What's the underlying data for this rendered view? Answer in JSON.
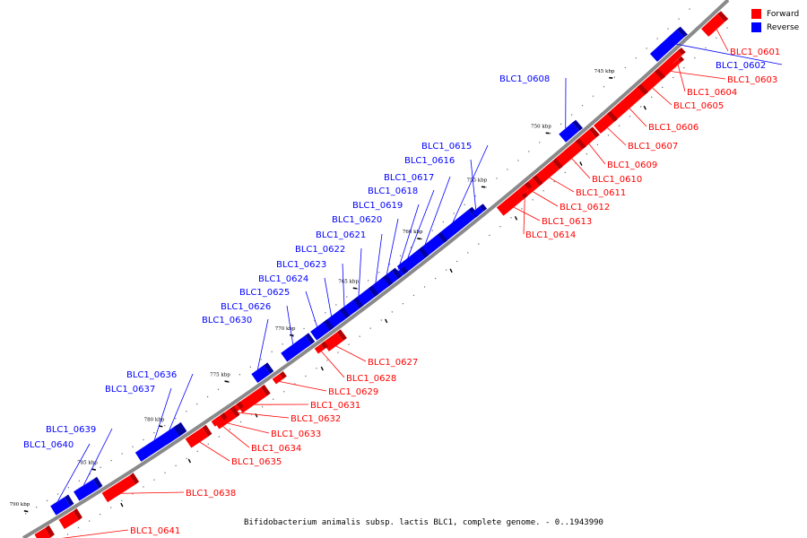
{
  "legend": {
    "forward_label": "Forward",
    "reverse_label": "Reverse",
    "forward_color": "#ff0000",
    "reverse_color": "#0000ff"
  },
  "caption": "Bifidobacterium animalis subsp. lactis BLC1, complete genome. - 0..1943990",
  "ticks": [
    {
      "label": "745 kbp"
    },
    {
      "label": "750 kbp"
    },
    {
      "label": "755 kbp"
    },
    {
      "label": "760 kbp"
    },
    {
      "label": "765 kbp"
    },
    {
      "label": "770 kbp"
    },
    {
      "label": "775 kbp"
    },
    {
      "label": "780 kbp"
    },
    {
      "label": "785 kbp"
    },
    {
      "label": "790 kbp"
    }
  ],
  "genes": [
    {
      "label": "BLC1_0601",
      "strand": "forward"
    },
    {
      "label": "BLC1_0602",
      "strand": "reverse"
    },
    {
      "label": "BLC1_0603",
      "strand": "forward"
    },
    {
      "label": "BLC1_0604",
      "strand": "forward"
    },
    {
      "label": "BLC1_0605",
      "strand": "forward"
    },
    {
      "label": "BLC1_0606",
      "strand": "forward"
    },
    {
      "label": "BLC1_0607",
      "strand": "forward"
    },
    {
      "label": "BLC1_0608",
      "strand": "reverse"
    },
    {
      "label": "BLC1_0609",
      "strand": "forward"
    },
    {
      "label": "BLC1_0610",
      "strand": "forward"
    },
    {
      "label": "BLC1_0611",
      "strand": "forward"
    },
    {
      "label": "BLC1_0612",
      "strand": "forward"
    },
    {
      "label": "BLC1_0613",
      "strand": "forward"
    },
    {
      "label": "BLC1_0614",
      "strand": "forward"
    },
    {
      "label": "BLC1_0615",
      "strand": "reverse"
    },
    {
      "label": "BLC1_0616",
      "strand": "reverse"
    },
    {
      "label": "BLC1_0617",
      "strand": "reverse"
    },
    {
      "label": "BLC1_0618",
      "strand": "reverse"
    },
    {
      "label": "BLC1_0619",
      "strand": "reverse"
    },
    {
      "label": "BLC1_0620",
      "strand": "reverse"
    },
    {
      "label": "BLC1_0621",
      "strand": "reverse"
    },
    {
      "label": "BLC1_0622",
      "strand": "reverse"
    },
    {
      "label": "BLC1_0623",
      "strand": "reverse"
    },
    {
      "label": "BLC1_0624",
      "strand": "reverse"
    },
    {
      "label": "BLC1_0625",
      "strand": "reverse"
    },
    {
      "label": "BLC1_0626",
      "strand": "reverse"
    },
    {
      "label": "BLC1_0627",
      "strand": "forward"
    },
    {
      "label": "BLC1_0628",
      "strand": "forward"
    },
    {
      "label": "BLC1_0629",
      "strand": "forward"
    },
    {
      "label": "BLC1_0630",
      "strand": "reverse"
    },
    {
      "label": "BLC1_0631",
      "strand": "forward"
    },
    {
      "label": "BLC1_0632",
      "strand": "forward"
    },
    {
      "label": "BLC1_0633",
      "strand": "forward"
    },
    {
      "label": "BLC1_0634",
      "strand": "forward"
    },
    {
      "label": "BLC1_0635",
      "strand": "forward"
    },
    {
      "label": "BLC1_0636",
      "strand": "reverse"
    },
    {
      "label": "BLC1_0637",
      "strand": "reverse"
    },
    {
      "label": "BLC1_0638",
      "strand": "forward"
    },
    {
      "label": "BLC1_0639",
      "strand": "reverse"
    },
    {
      "label": "BLC1_0640",
      "strand": "reverse"
    },
    {
      "label": "BLC1_0641",
      "strand": "forward"
    }
  ]
}
